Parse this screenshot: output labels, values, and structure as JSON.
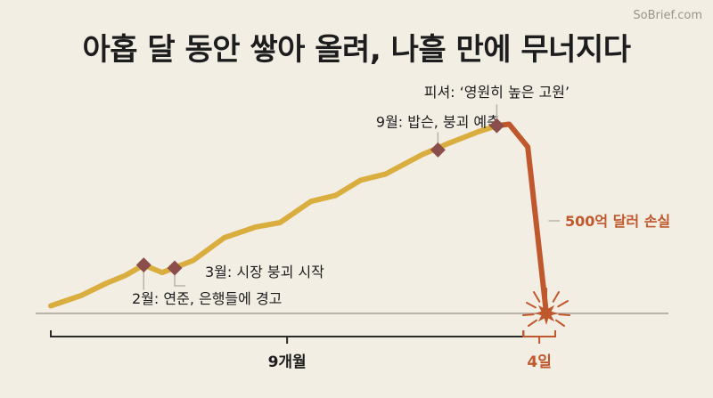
{
  "brand": "SoBrief.com",
  "title": "아홉 달 동안 쌓아 올려, 나흘 만에 무너지다",
  "colors": {
    "background": "#f3eee4",
    "rise_line": "#d9ad3e",
    "crash_line": "#c0582d",
    "marker": "#8b4e4b",
    "axis": "#b9b3a8",
    "text": "#1d1d1d",
    "crash_text": "#c0582d"
  },
  "chart_data": {
    "type": "line",
    "title": "아홉 달 동안 쌓아 올려, 나흘 만에 무너지다",
    "rise": [
      [
        0,
        0.05
      ],
      [
        0.05,
        0.12
      ],
      [
        0.09,
        0.2
      ],
      [
        0.12,
        0.25
      ],
      [
        0.15,
        0.32
      ],
      [
        0.18,
        0.27
      ],
      [
        0.23,
        0.35
      ],
      [
        0.28,
        0.5
      ],
      [
        0.33,
        0.57
      ],
      [
        0.37,
        0.6
      ],
      [
        0.42,
        0.74
      ],
      [
        0.46,
        0.78
      ],
      [
        0.5,
        0.88
      ],
      [
        0.54,
        0.92
      ],
      [
        0.6,
        1.05
      ],
      [
        0.64,
        1.12
      ],
      [
        0.69,
        1.2
      ],
      [
        0.72,
        1.24
      ]
    ],
    "crash": [
      [
        0.72,
        1.24
      ],
      [
        0.74,
        1.25
      ],
      [
        0.77,
        1.1
      ],
      [
        0.8,
        0.0
      ]
    ],
    "events": [
      {
        "label": "2월: 연준, 은행들에 경고",
        "x": 0.15,
        "y": 0.32,
        "position": "below"
      },
      {
        "label": "3월: 시장 붕괴 시작",
        "x": 0.2,
        "y": 0.3,
        "position": "below"
      },
      {
        "label": "9월: 밥슨, 붕괴 예측",
        "x": 0.625,
        "y": 1.08,
        "position": "above"
      },
      {
        "label": "피셔: ‘영원히 높은 고원’",
        "x": 0.72,
        "y": 1.24,
        "position": "above"
      }
    ],
    "crash_label": "500억 달러 손실",
    "spans": [
      {
        "label": "9개월",
        "from": 0,
        "to": 0.75
      },
      {
        "label": "4일",
        "from": 0.76,
        "to": 0.8
      }
    ]
  }
}
